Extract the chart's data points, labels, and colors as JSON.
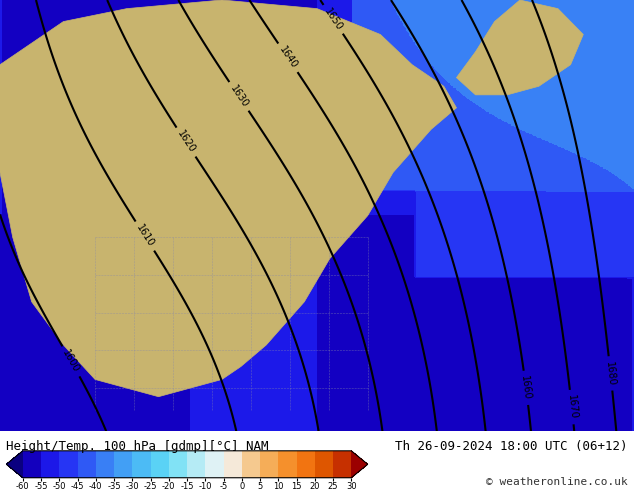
{
  "title_left": "Height/Temp. 100 hPa [gdmp][°C] NAM",
  "title_right": "Th 26-09-2024 18:00 UTC (06+12)",
  "copyright": "© weatheronline.co.uk",
  "colorbar_levels": [
    -60,
    -55,
    -50,
    -45,
    -40,
    -35,
    -30,
    -25,
    -20,
    -15,
    -10,
    -5,
    0,
    5,
    10,
    15,
    20,
    25,
    30
  ],
  "colorbar_colors": [
    "#0a0080",
    "#1400c8",
    "#1e1ef0",
    "#283cf5",
    "#3264f5",
    "#3c8cf5",
    "#46aaf5",
    "#50c8f5",
    "#64dcf5",
    "#a0e8f5",
    "#d2f0f5",
    "#f5f5f5",
    "#f5d2a0",
    "#f5b464",
    "#f59632",
    "#f57814",
    "#e05a00",
    "#c83200",
    "#9b0000"
  ],
  "bg_map_color": "#1e40c8",
  "land_color": "#c8b46e",
  "contour_color": "#000000",
  "contour_linewidth": 1.5,
  "fig_width": 6.34,
  "fig_height": 4.9,
  "dpi": 100,
  "bottom_bar_height": 0.12,
  "font_size_title": 9,
  "font_size_copy": 8
}
